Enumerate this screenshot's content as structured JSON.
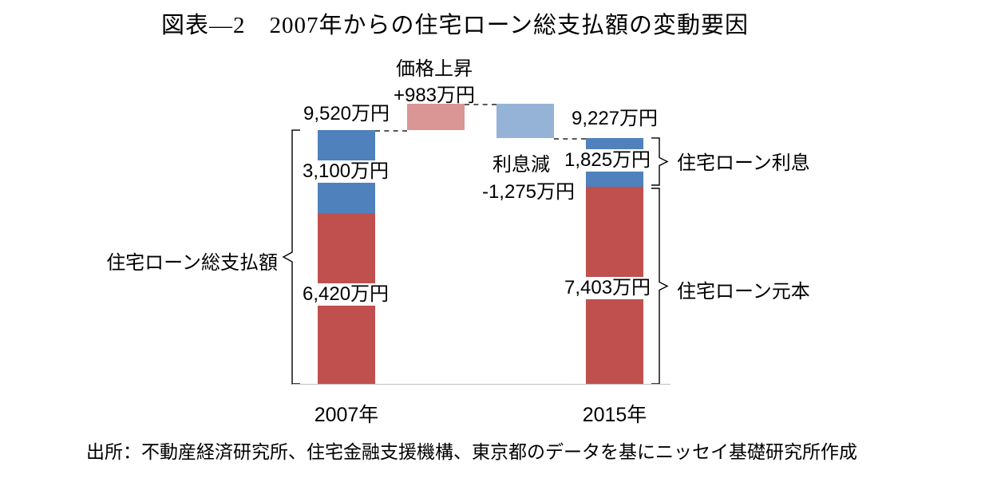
{
  "title": "図表―2　2007年からの住宅ローン総支払額の変動要因",
  "source": "出所：不動産経済研究所、住宅金融支援機構、東京都のデータを基にニッセイ基礎研究所作成",
  "colors": {
    "principal": "#C0504D",
    "interest": "#4F81BD",
    "price_increase": "#D99694",
    "interest_decrease": "#95B3D7"
  },
  "chart_data": {
    "type": "bar",
    "subtype": "stacked-waterfall",
    "unit": "万円",
    "categories": [
      "2007年",
      "2015年"
    ],
    "series": [
      {
        "name": "住宅ローン元本",
        "values": [
          6420,
          7403
        ]
      },
      {
        "name": "住宅ローン利息",
        "values": [
          3100,
          1825
        ]
      }
    ],
    "totals": [
      9520,
      9227
    ],
    "bridges": [
      {
        "name": "価格上昇",
        "value": 983
      },
      {
        "name": "利息減",
        "value": -1275
      }
    ],
    "ylim": [
      0,
      11000
    ],
    "grid": false,
    "legend": "none",
    "labels": {
      "total_2007": "9,520万円",
      "interest_2007": "3,100万円",
      "principal_2007": "6,420万円",
      "total_2015": "9,227万円",
      "interest_2015": "1,825万円",
      "principal_2015": "7,403万円",
      "price_increase_title": "価格上昇",
      "price_increase_value": "+983万円",
      "interest_decrease_title": "利息減",
      "interest_decrease_value": "-1,275万円",
      "bracket_total": "住宅ローン総支払額",
      "bracket_interest": "住宅ローン利息",
      "bracket_principal": "住宅ローン元本"
    }
  }
}
